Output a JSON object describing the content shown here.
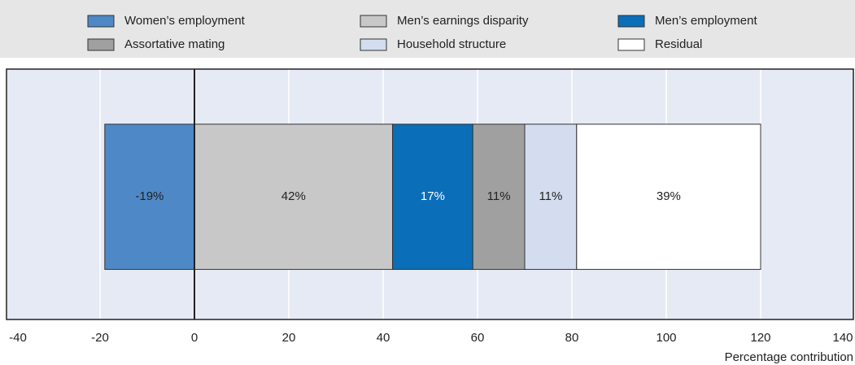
{
  "chart_data": {
    "type": "bar",
    "orientation": "horizontal",
    "stacked": true,
    "categories": [
      null
    ],
    "series": [
      {
        "name": "Women’s employment",
        "color": "#4f88c6",
        "values": [
          -19
        ],
        "value_labels": [
          "-19%"
        ]
      },
      {
        "name": "Men’s earnings disparity",
        "color": "#c8c8c8",
        "values": [
          42
        ],
        "value_labels": [
          "42%"
        ]
      },
      {
        "name": "Men’s employment",
        "color": "#0a6eb8",
        "values": [
          17
        ],
        "value_labels": [
          "17%"
        ]
      },
      {
        "name": "Assortative mating",
        "color": "#a0a0a0",
        "values": [
          11
        ],
        "value_labels": [
          "11%"
        ]
      },
      {
        "name": "Household structure",
        "color": "#d3ddef",
        "values": [
          11
        ],
        "value_labels": [
          "11%"
        ]
      },
      {
        "name": "Residual",
        "color": "#ffffff",
        "values": [
          39
        ],
        "value_labels": [
          "39%"
        ]
      }
    ],
    "xlabel": "Percentage contribution",
    "xlim": [
      -40,
      140
    ],
    "xticks": [
      -40,
      -20,
      0,
      20,
      40,
      60,
      80,
      100,
      120,
      140
    ],
    "grid": true
  }
}
